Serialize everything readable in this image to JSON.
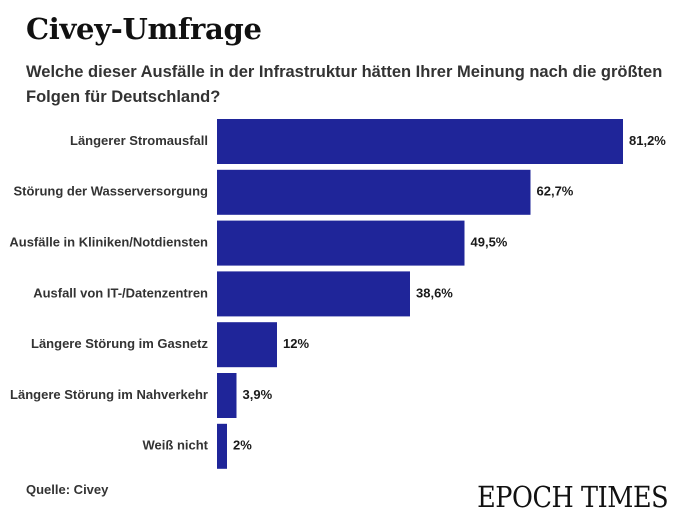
{
  "header": {
    "title": "Civey-Umfrage",
    "subtitle": "Welche dieser Ausfälle in der Infrastruktur hätten Ihrer Meinung nach die größten Folgen für Deutschland?"
  },
  "footer": {
    "source": "Quelle: Civey",
    "logo": "EPOCH TIMES"
  },
  "colors": {
    "bar": "#1f2599",
    "text": "#1a1a1a"
  },
  "chart_data": {
    "type": "bar",
    "orientation": "horizontal",
    "title": "Civey-Umfrage",
    "subtitle": "Welche dieser Ausfälle in der Infrastruktur hätten Ihrer Meinung nach die größten Folgen für Deutschland?",
    "categories": [
      "Längerer Stromausfall",
      "Störung der Wasserversorgung",
      "Ausfälle in Kliniken/Notdiensten",
      "Ausfall von IT-/Datenzentren",
      "Längere Störung im Gasnetz",
      "Längere Störung im Nahverkehr",
      "Weiß nicht"
    ],
    "values": [
      81.2,
      62.7,
      49.5,
      38.6,
      12,
      3.9,
      2
    ],
    "value_labels": [
      "81,2%",
      "62,7%",
      "49,5%",
      "38,6%",
      "12%",
      "3,9%",
      "2%"
    ],
    "unit": "%",
    "xlim": [
      0,
      81.2
    ],
    "grid": false,
    "xlabel": "",
    "ylabel": ""
  }
}
